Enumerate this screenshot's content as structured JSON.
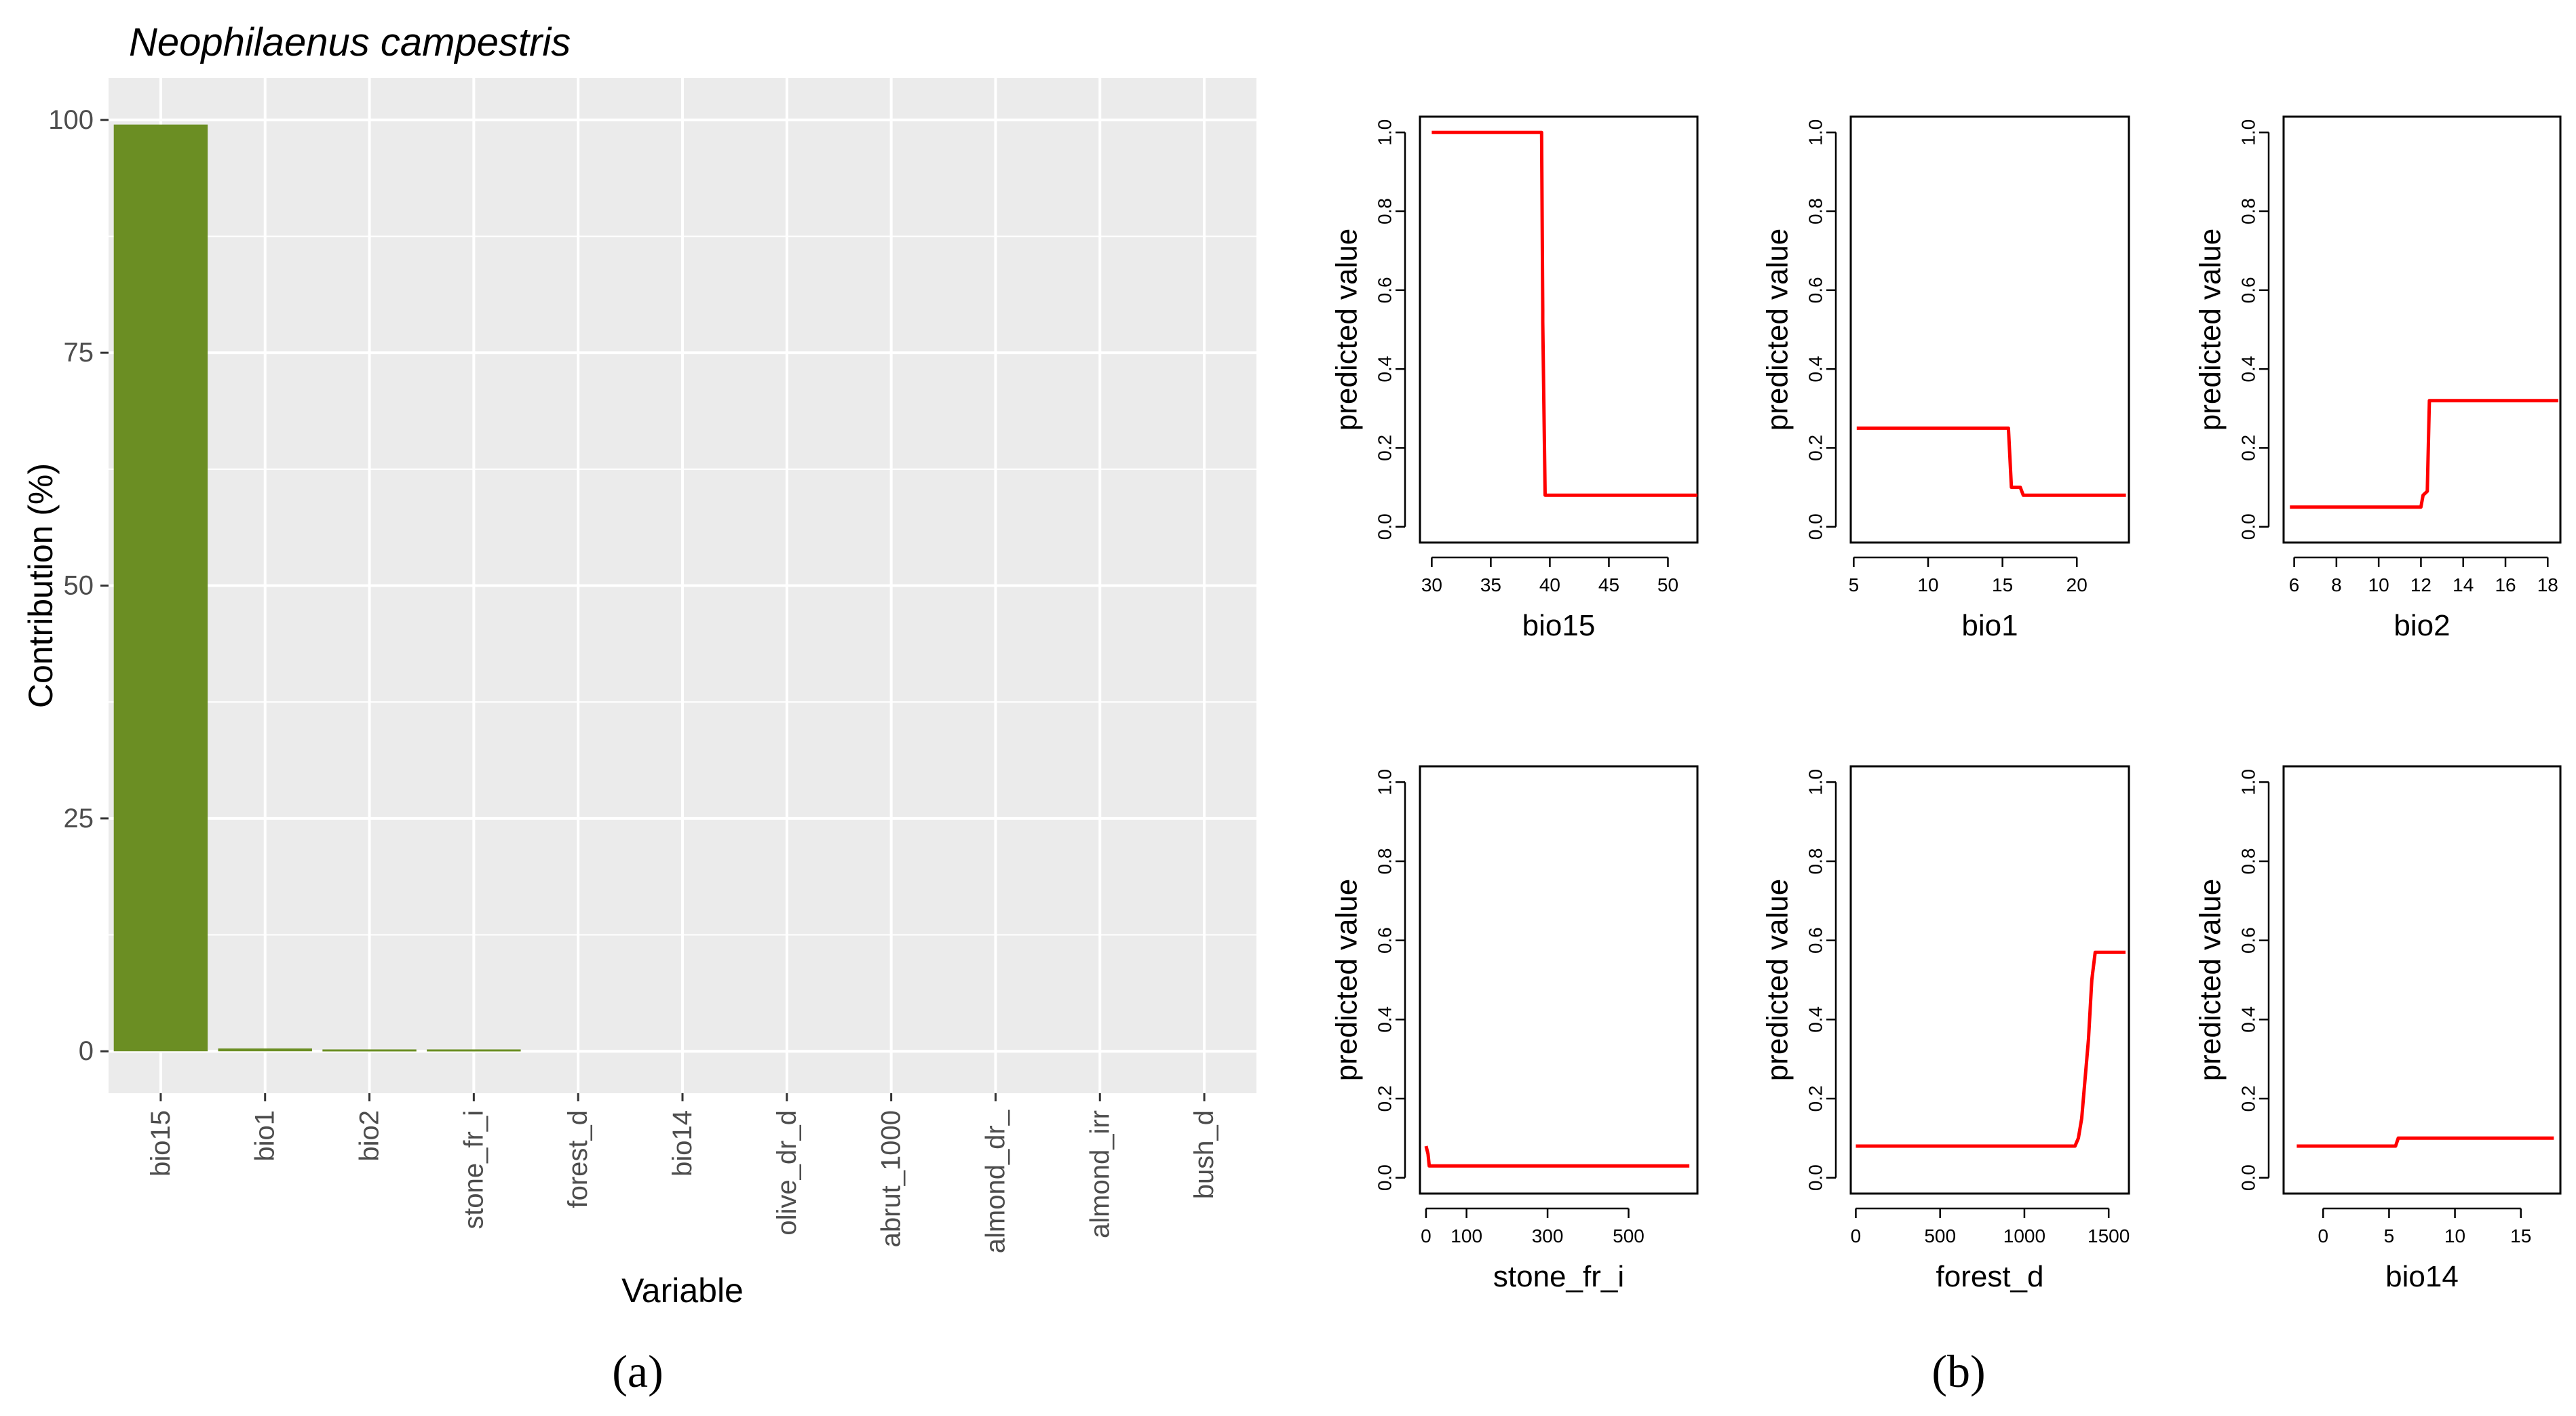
{
  "panel_a_label": "(a)",
  "panel_b_label": "(b)",
  "chart_data": [
    {
      "type": "bar",
      "title": "Neophilaenus campestris",
      "xlabel": "Variable",
      "ylabel": "Contribution (%)",
      "ylim": [
        -4.5,
        104.5
      ],
      "yticks": [
        0,
        25,
        50,
        75,
        100
      ],
      "grid": true,
      "bar_color": "#6b8e23",
      "panel_bg": "#ebebeb",
      "categories": [
        "bio15",
        "bio1",
        "bio2",
        "stone_fr_i",
        "forest_d",
        "bio14",
        "olive_dr_d",
        "abrut_1000",
        "almond_dr_",
        "almond_irr",
        "bush_d"
      ],
      "values": [
        99.5,
        0.3,
        0.2,
        0.2,
        0,
        0,
        0,
        0,
        0,
        0,
        0
      ]
    },
    {
      "type": "line",
      "xlabel": "bio15",
      "ylabel": "predicted value",
      "xlim": [
        29,
        52.5
      ],
      "ylim": [
        -0.04,
        1.04
      ],
      "xticks": [
        30,
        35,
        40,
        45,
        50
      ],
      "yticks": [
        0.0,
        0.2,
        0.4,
        0.6,
        0.8,
        1.0
      ],
      "ytick_labels": [
        "0.0",
        "0.2",
        "0.4",
        "0.6",
        "0.8",
        "1.0"
      ],
      "line_color": "#ff0000",
      "x": [
        30,
        39.3,
        39.4,
        39.4,
        39.6,
        52.5
      ],
      "y": [
        1.0,
        1.0,
        0.55,
        0.52,
        0.08,
        0.08
      ]
    },
    {
      "type": "line",
      "xlabel": "bio1",
      "ylabel": "predicted value",
      "xlim": [
        4.8,
        23.5
      ],
      "ylim": [
        -0.04,
        1.04
      ],
      "xticks": [
        5,
        10,
        15,
        20
      ],
      "yticks": [
        0.0,
        0.2,
        0.4,
        0.6,
        0.8,
        1.0
      ],
      "ytick_labels": [
        "0.0",
        "0.2",
        "0.4",
        "0.6",
        "0.8",
        "1.0"
      ],
      "line_color": "#ff0000",
      "x": [
        5.2,
        15.4,
        15.6,
        16.2,
        16.4,
        23.3
      ],
      "y": [
        0.25,
        0.25,
        0.1,
        0.1,
        0.08,
        0.08
      ]
    },
    {
      "type": "line",
      "xlabel": "bio2",
      "ylabel": "predicted value",
      "xlim": [
        5.5,
        18.6
      ],
      "ylim": [
        -0.04,
        1.04
      ],
      "xticks": [
        6,
        8,
        10,
        12,
        14,
        16,
        18
      ],
      "yticks": [
        0.0,
        0.2,
        0.4,
        0.6,
        0.8,
        1.0
      ],
      "ytick_labels": [
        "0.0",
        "0.2",
        "0.4",
        "0.6",
        "0.8",
        "1.0"
      ],
      "line_color": "#ff0000",
      "x": [
        5.8,
        12.0,
        12.1,
        12.3,
        12.4,
        18.5
      ],
      "y": [
        0.05,
        0.05,
        0.08,
        0.09,
        0.32,
        0.32
      ]
    },
    {
      "type": "line",
      "xlabel": "stone_fr_i",
      "ylabel": "predicted value",
      "xlim": [
        -15,
        670
      ],
      "ylim": [
        -0.04,
        1.04
      ],
      "xticks": [
        0,
        100,
        300,
        500
      ],
      "yticks": [
        0.0,
        0.2,
        0.4,
        0.6,
        0.8,
        1.0
      ],
      "ytick_labels": [
        "0.0",
        "0.2",
        "0.4",
        "0.6",
        "0.8",
        "1.0"
      ],
      "line_color": "#ff0000",
      "x": [
        0,
        5,
        8,
        650
      ],
      "y": [
        0.08,
        0.06,
        0.03,
        0.03
      ]
    },
    {
      "type": "line",
      "xlabel": "forest_d",
      "ylabel": "predicted value",
      "xlim": [
        -30,
        1620
      ],
      "ylim": [
        -0.04,
        1.04
      ],
      "xticks": [
        0,
        500,
        1000,
        1500
      ],
      "yticks": [
        0.0,
        0.2,
        0.4,
        0.6,
        0.8,
        1.0
      ],
      "ytick_labels": [
        "0.0",
        "0.2",
        "0.4",
        "0.6",
        "0.8",
        "1.0"
      ],
      "line_color": "#ff0000",
      "x": [
        0,
        1300,
        1320,
        1340,
        1360,
        1380,
        1400,
        1420,
        1600
      ],
      "y": [
        0.08,
        0.08,
        0.1,
        0.15,
        0.25,
        0.35,
        0.5,
        0.57,
        0.57
      ]
    },
    {
      "type": "line",
      "xlabel": "bio14",
      "ylabel": "predicted value",
      "xlim": [
        -3,
        18
      ],
      "ylim": [
        -0.04,
        1.04
      ],
      "xticks": [
        0,
        5,
        10,
        15
      ],
      "yticks": [
        0.0,
        0.2,
        0.4,
        0.6,
        0.8,
        1.0
      ],
      "ytick_labels": [
        "0.0",
        "0.2",
        "0.4",
        "0.6",
        "0.8",
        "1.0"
      ],
      "line_color": "#ff0000",
      "x": [
        -2,
        5.5,
        5.7,
        17.5
      ],
      "y": [
        0.08,
        0.08,
        0.1,
        0.1
      ]
    }
  ]
}
